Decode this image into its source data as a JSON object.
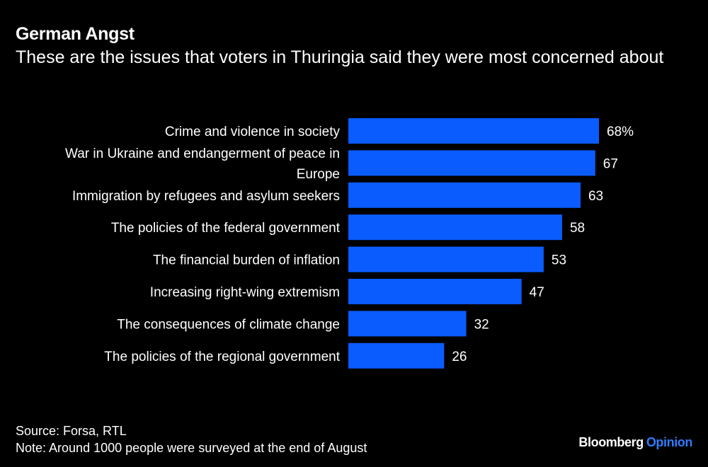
{
  "chart_data": {
    "type": "bar",
    "orientation": "horizontal",
    "title": "German Angst",
    "subtitle": "These are the issues that voters in Thuringia said they were most concerned about",
    "categories": [
      "Crime and violence in society",
      "War in Ukraine and endangerment of peace in Europe",
      "Immigration by refugees and asylum seekers",
      "The policies of the federal government",
      "The financial burden of inflation",
      "Increasing right-wing extremism",
      "The consequences of climate change",
      "The policies of the regional government"
    ],
    "category_lines": [
      [
        "Crime and violence in society"
      ],
      [
        "War in Ukraine and endangerment of peace in",
        "Europe"
      ],
      [
        "Immigration by refugees and asylum seekers"
      ],
      [
        "The policies of the federal government"
      ],
      [
        "The financial burden of inflation"
      ],
      [
        "Increasing right-wing extremism"
      ],
      [
        "The consequences of climate change"
      ],
      [
        "The policies of the regional government"
      ]
    ],
    "values": [
      68,
      67,
      63,
      58,
      53,
      47,
      32,
      26
    ],
    "value_labels": [
      "68%",
      "67",
      "63",
      "58",
      "53",
      "47",
      "32",
      "26"
    ],
    "unit": "%",
    "xlim": [
      0,
      68
    ],
    "bar_color": "#0a5cff",
    "grid": false,
    "legend": "none"
  },
  "footer": {
    "source": "Source: Forsa, RTL",
    "note": "Note: Around 1000 people were surveyed at the end of August"
  },
  "brand": {
    "name": "Bloomberg",
    "product": "Opinion",
    "product_color": "#2f7cff"
  }
}
